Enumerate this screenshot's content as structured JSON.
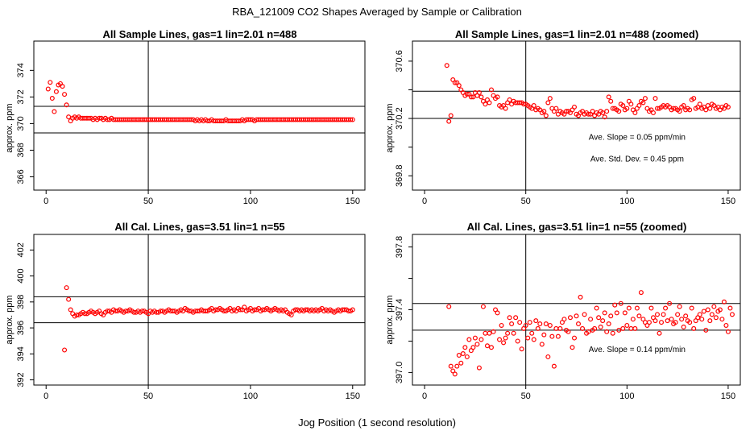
{
  "figure": {
    "title": "RBA_121009  CO2 Shapes Averaged by Sample or Calibration",
    "xlabel": "Jog Position (1 second resolution)"
  },
  "colors": {
    "points": "#ff0000",
    "lines": "#000000",
    "axes": "#000000"
  },
  "chart_data": [
    {
      "type": "scatter",
      "title": "All Sample Lines, gas=1 lin=2.01 n=488",
      "ylabel": "approx. ppm",
      "xlim": [
        -6,
        156
      ],
      "ylim": [
        365,
        376.2
      ],
      "xticks": [
        0,
        50,
        100,
        150
      ],
      "yticks": [
        366,
        368,
        370,
        372,
        374
      ],
      "vline": 50,
      "hlines": [
        369.3,
        371.3
      ],
      "annotations": [],
      "series": [
        {
          "x_start": 1,
          "values": [
            372.6,
            373.1,
            371.9,
            370.9,
            372.4,
            372.9,
            373.0,
            372.8,
            372.2,
            371.4,
            370.5,
            370.2,
            370.4,
            370.5,
            370.4,
            370.5,
            370.4,
            370.4,
            370.4,
            370.4,
            370.4,
            370.4,
            370.3,
            370.4,
            370.3,
            370.4,
            370.4,
            370.3,
            370.4,
            370.3,
            370.3,
            370.4,
            370.3,
            370.3,
            370.3,
            370.3,
            370.3,
            370.3,
            370.3,
            370.3,
            370.3,
            370.3,
            370.3,
            370.3,
            370.3,
            370.3,
            370.3,
            370.3,
            370.3,
            370.3,
            370.3,
            370.3,
            370.3,
            370.3,
            370.3,
            370.3,
            370.3,
            370.3,
            370.3,
            370.3,
            370.3,
            370.3,
            370.3,
            370.3,
            370.3,
            370.3,
            370.3,
            370.3,
            370.3,
            370.3,
            370.3,
            370.3,
            370.2,
            370.3,
            370.2,
            370.3,
            370.2,
            370.3,
            370.2,
            370.2,
            370.3,
            370.2,
            370.2,
            370.2,
            370.2,
            370.2,
            370.2,
            370.3,
            370.2,
            370.2,
            370.2,
            370.2,
            370.2,
            370.2,
            370.2,
            370.3,
            370.2,
            370.3,
            370.3,
            370.3,
            370.3,
            370.2,
            370.3,
            370.3,
            370.3,
            370.3,
            370.3,
            370.3,
            370.3,
            370.3,
            370.3,
            370.3,
            370.3,
            370.3,
            370.3,
            370.3,
            370.3,
            370.3,
            370.3,
            370.3,
            370.3,
            370.3,
            370.3,
            370.3,
            370.3,
            370.3,
            370.3,
            370.3,
            370.3,
            370.3,
            370.3,
            370.3,
            370.3,
            370.3,
            370.3,
            370.3,
            370.3,
            370.3,
            370.3,
            370.3,
            370.3,
            370.3,
            370.3,
            370.3,
            370.3,
            370.3,
            370.3,
            370.3,
            370.3,
            370.3
          ]
        }
      ]
    },
    {
      "type": "scatter",
      "title": "All Sample Lines, gas=1 lin=2.01 n=488 (zoomed)",
      "ylabel": "approx. ppm",
      "xlim": [
        -6,
        156
      ],
      "ylim": [
        369.7,
        370.74
      ],
      "xticks": [
        0,
        50,
        100,
        150
      ],
      "yticks": [
        369.8,
        370.0,
        370.2,
        370.4,
        370.6
      ],
      "ytick_labels": [
        "369.8",
        "",
        "370.2",
        "",
        "370.6"
      ],
      "vline": 50,
      "hlines": [
        370.2,
        370.39
      ],
      "annotations": [
        {
          "text": "Ave. Slope =  0.05  ppm/min",
          "x": 105,
          "y": 370.05
        },
        {
          "text": "Ave. Std. Dev. =  0.45  ppm",
          "x": 105,
          "y": 369.9
        }
      ],
      "series": [
        {
          "x_start": 11,
          "values": [
            370.57,
            370.18,
            370.22,
            370.47,
            370.45,
            370.45,
            370.43,
            370.4,
            370.38,
            370.36,
            370.37,
            370.37,
            370.35,
            370.35,
            370.38,
            370.36,
            370.38,
            370.35,
            370.32,
            370.3,
            370.33,
            370.31,
            370.4,
            370.36,
            370.34,
            370.35,
            370.29,
            370.28,
            370.29,
            370.27,
            370.31,
            370.33,
            370.3,
            370.32,
            370.31,
            370.31,
            370.31,
            370.31,
            370.3,
            370.3,
            370.29,
            370.28,
            370.27,
            370.29,
            370.26,
            370.27,
            370.26,
            370.24,
            370.25,
            370.22,
            370.31,
            370.34,
            370.27,
            370.25,
            370.27,
            370.23,
            370.25,
            370.24,
            370.23,
            370.25,
            370.25,
            370.24,
            370.26,
            370.28,
            370.23,
            370.22,
            370.24,
            370.25,
            370.23,
            370.24,
            370.23,
            370.23,
            370.25,
            370.22,
            370.24,
            370.23,
            370.25,
            370.24,
            370.21,
            370.25,
            370.35,
            370.32,
            370.27,
            370.27,
            370.26,
            370.25,
            370.3,
            370.29,
            370.26,
            370.27,
            370.32,
            370.3,
            370.26,
            370.24,
            370.27,
            370.29,
            370.32,
            370.31,
            370.34,
            370.27,
            370.25,
            370.26,
            370.24,
            370.34,
            370.27,
            370.27,
            370.28,
            370.29,
            370.28,
            370.29,
            370.28,
            370.26,
            370.27,
            370.27,
            370.26,
            370.25,
            370.28,
            370.29,
            370.26,
            370.27,
            370.26,
            370.33,
            370.34,
            370.27,
            370.28,
            370.3,
            370.27,
            370.28,
            370.26,
            370.29,
            370.27,
            370.3,
            370.29,
            370.27,
            370.28,
            370.26,
            370.28,
            370.27,
            370.29,
            370.28
          ]
        }
      ]
    },
    {
      "type": "scatter",
      "title": "All Cal. Lines, gas=3.51 lin=1 n=55",
      "ylabel": "approx. ppm",
      "xlim": [
        -6,
        156
      ],
      "ylim": [
        391.6,
        403.2
      ],
      "xticks": [
        0,
        50,
        100,
        150
      ],
      "yticks": [
        392,
        394,
        396,
        398,
        400,
        402
      ],
      "vline": 50,
      "hlines": [
        396.4,
        398.4
      ],
      "annotations": [],
      "series": [
        {
          "x_start": 9,
          "values": [
            394.3,
            399.1,
            398.2,
            397.4,
            397.1,
            396.9,
            397.0,
            397.0,
            397.1,
            397.2,
            397.1,
            397.1,
            397.2,
            397.3,
            397.2,
            397.1,
            397.2,
            397.3,
            397.1,
            397.0,
            397.2,
            397.3,
            397.3,
            397.2,
            397.4,
            397.3,
            397.3,
            397.4,
            397.3,
            397.2,
            397.3,
            397.3,
            397.4,
            397.3,
            397.2,
            397.2,
            397.3,
            397.2,
            397.3,
            397.3,
            397.2,
            397.1,
            397.3,
            397.2,
            397.3,
            397.2,
            397.2,
            397.3,
            397.3,
            397.2,
            397.3,
            397.4,
            397.3,
            397.3,
            397.3,
            397.2,
            397.3,
            397.4,
            397.3,
            397.5,
            397.4,
            397.3,
            397.3,
            397.2,
            397.3,
            397.3,
            397.3,
            397.4,
            397.3,
            397.3,
            397.3,
            397.4,
            397.5,
            397.3,
            397.4,
            397.4,
            397.5,
            397.4,
            397.3,
            397.3,
            397.4,
            397.5,
            397.3,
            397.4,
            397.3,
            397.5,
            397.4,
            397.4,
            397.6,
            397.3,
            397.4,
            397.5,
            397.3,
            397.4,
            397.4,
            397.5,
            397.3,
            397.4,
            397.4,
            397.5,
            397.4,
            397.3,
            397.4,
            397.5,
            397.4,
            397.3,
            397.4,
            397.3,
            397.4,
            397.2,
            397.1,
            397.0,
            397.3,
            397.4,
            397.4,
            397.3,
            397.4,
            397.3,
            397.4,
            397.4,
            397.3,
            397.4,
            397.3,
            397.4,
            397.3,
            397.4,
            397.5,
            397.3,
            397.4,
            397.3,
            397.4,
            397.3,
            397.2,
            397.3,
            397.4,
            397.3,
            397.4,
            397.4,
            397.4,
            397.3,
            397.3,
            397.4
          ]
        }
      ]
    },
    {
      "type": "scatter",
      "title": "All Cal. Lines, gas=3.51 lin=1 n=55 (zoomed)",
      "ylabel": "approx. ppm",
      "xlim": [
        -6,
        156
      ],
      "ylim": [
        396.92,
        397.88
      ],
      "xticks": [
        0,
        50,
        100,
        150
      ],
      "yticks": [
        397.0,
        397.2,
        397.4,
        397.6,
        397.8
      ],
      "ytick_labels": [
        "397.0",
        "",
        "397.4",
        "",
        "397.8"
      ],
      "vline": 50,
      "hlines": [
        397.27,
        397.44
      ],
      "annotations": [
        {
          "text": "Ave. Slope =  0.14  ppm/min",
          "x": 105,
          "y": 397.13
        }
      ],
      "series": [
        {
          "x_start": 12,
          "values": [
            397.42,
            397.04,
            397.01,
            396.99,
            397.04,
            397.11,
            397.06,
            397.12,
            397.16,
            397.1,
            397.21,
            397.14,
            397.16,
            397.22,
            397.18,
            397.03,
            397.21,
            397.42,
            397.25,
            397.17,
            397.25,
            397.16,
            397.26,
            397.4,
            397.38,
            397.21,
            397.3,
            397.19,
            397.22,
            397.25,
            397.35,
            397.31,
            397.25,
            397.35,
            397.2,
            397.32,
            397.15,
            397.28,
            397.3,
            397.22,
            397.32,
            397.25,
            397.21,
            397.33,
            397.28,
            397.31,
            397.18,
            397.24,
            397.31,
            397.1,
            397.3,
            397.23,
            397.04,
            397.28,
            397.23,
            397.28,
            397.32,
            397.34,
            397.27,
            397.26,
            397.35,
            397.16,
            397.22,
            397.36,
            397.31,
            397.48,
            397.28,
            397.37,
            397.25,
            397.26,
            397.34,
            397.27,
            397.28,
            397.41,
            397.35,
            397.29,
            397.33,
            397.38,
            397.26,
            397.31,
            397.36,
            397.25,
            397.43,
            397.38,
            397.27,
            397.44,
            397.28,
            397.38,
            397.3,
            397.41,
            397.28,
            397.34,
            397.28,
            397.41,
            397.36,
            397.51,
            397.34,
            397.32,
            397.3,
            397.32,
            397.41,
            397.35,
            397.33,
            397.37,
            397.25,
            397.32,
            397.37,
            397.41,
            397.33,
            397.44,
            397.34,
            397.31,
            397.32,
            397.37,
            397.42,
            397.34,
            397.29,
            397.36,
            397.33,
            397.32,
            397.41,
            397.28,
            397.33,
            397.35,
            397.37,
            397.34,
            397.39,
            397.27,
            397.4,
            397.33,
            397.37,
            397.42,
            397.35,
            397.39,
            397.4,
            397.34,
            397.45,
            397.3,
            397.26,
            397.41,
            397.37
          ]
        }
      ]
    }
  ]
}
